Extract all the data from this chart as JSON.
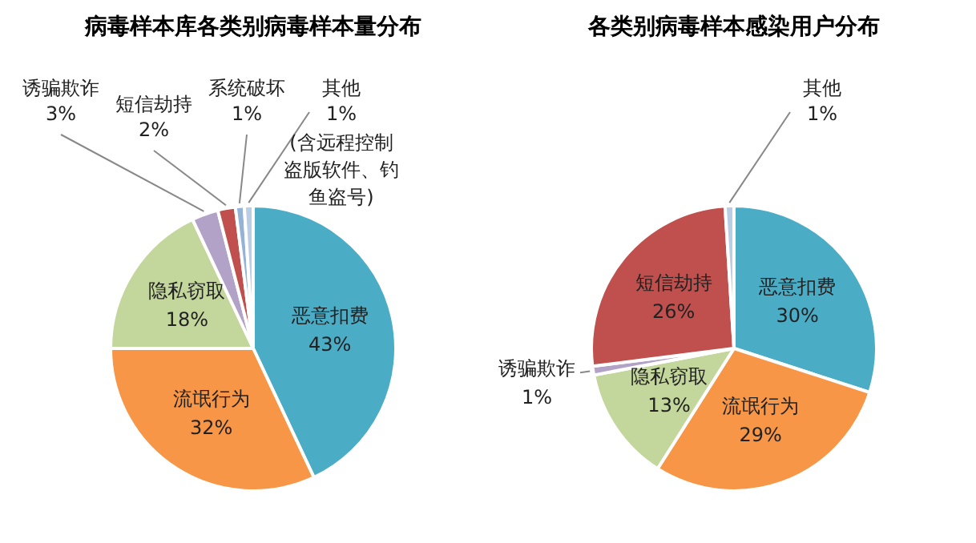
{
  "chart_data": [
    {
      "type": "pie",
      "title": "病毒样本库各类别病毒样本量分布",
      "categories": [
        "恶意扣费",
        "流氓行为",
        "隐私窃取",
        "诱骗欺诈",
        "短信劫持",
        "系统破坏",
        "其他"
      ],
      "values": [
        43,
        32,
        18,
        3,
        2,
        1,
        1
      ],
      "value_labels": [
        "43%",
        "32%",
        "18%",
        "3%",
        "2%",
        "1%",
        "1%"
      ],
      "colors": [
        "#4bacc6",
        "#f79646",
        "#c3d69b",
        "#b3a2c7",
        "#c0504d",
        "#95b3d7",
        "#b9cde5"
      ],
      "annotations": [
        "(含远程控制盗版软件、钓鱼盗号)"
      ]
    },
    {
      "type": "pie",
      "title": "各类别病毒样本感染用户分布",
      "categories": [
        "恶意扣费",
        "流氓行为",
        "隐私窃取",
        "诱骗欺诈",
        "短信劫持",
        "其他"
      ],
      "values": [
        30,
        29,
        13,
        1,
        26,
        1
      ],
      "value_labels": [
        "30%",
        "29%",
        "13%",
        "1%",
        "26%",
        "1%"
      ],
      "colors": [
        "#4bacc6",
        "#f79646",
        "#c3d69b",
        "#b3a2c7",
        "#c0504d",
        "#b9cde5"
      ]
    }
  ]
}
